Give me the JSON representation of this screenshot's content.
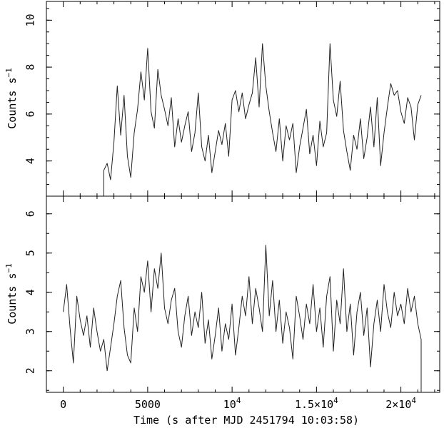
{
  "chart_data": [
    {
      "type": "line",
      "panel": "top",
      "xlim": [
        -1000,
        22300
      ],
      "ylim": [
        2.5,
        10.8
      ],
      "yticks_major": [
        4,
        6,
        8,
        10
      ],
      "ytick_labels": [
        "4",
        "6",
        "8",
        "10"
      ],
      "ylabel_base": "Counts s",
      "ylabel_sup": "−1",
      "x": [
        2400,
        2600,
        2800,
        3000,
        3200,
        3400,
        3600,
        3800,
        4000,
        4200,
        4400,
        4600,
        4800,
        5000,
        5200,
        5400,
        5600,
        5800,
        6000,
        6200,
        6400,
        6600,
        6800,
        7000,
        7200,
        7400,
        7600,
        7800,
        8000,
        8200,
        8400,
        8600,
        8800,
        9000,
        9200,
        9400,
        9600,
        9800,
        10000,
        10200,
        10400,
        10600,
        10800,
        11000,
        11200,
        11400,
        11600,
        11800,
        12000,
        12200,
        12400,
        12600,
        12800,
        13000,
        13200,
        13400,
        13600,
        13800,
        14000,
        14200,
        14400,
        14600,
        14800,
        15000,
        15200,
        15400,
        15600,
        15800,
        16000,
        16200,
        16400,
        16600,
        16800,
        17000,
        17200,
        17400,
        17600,
        17800,
        18000,
        18200,
        18400,
        18600,
        18800,
        19000,
        19200,
        19400,
        19600,
        19800,
        20000,
        20200,
        20400,
        20600,
        20800,
        21000,
        21200
      ],
      "y": [
        3.6,
        3.9,
        3.2,
        4.8,
        7.2,
        5.1,
        6.8,
        4.2,
        3.3,
        5.2,
        6.2,
        7.8,
        6.6,
        8.8,
        6.1,
        5.4,
        7.9,
        6.8,
        6.2,
        5.5,
        6.7,
        4.6,
        5.8,
        4.8,
        5.5,
        6.1,
        4.4,
        5.2,
        6.9,
        4.6,
        4.0,
        5.1,
        3.5,
        4.4,
        5.3,
        4.7,
        5.6,
        4.2,
        6.6,
        7.0,
        6.1,
        6.9,
        5.8,
        6.4,
        6.9,
        8.4,
        6.3,
        9.0,
        7.2,
        6.1,
        5.2,
        4.4,
        5.8,
        4.0,
        5.5,
        4.9,
        5.6,
        3.5,
        4.6,
        5.4,
        6.2,
        4.3,
        5.1,
        3.8,
        5.7,
        4.6,
        5.2,
        9.0,
        6.6,
        5.9,
        7.4,
        5.3,
        4.4,
        3.6,
        5.1,
        4.5,
        5.8,
        4.1,
        5.0,
        6.3,
        4.6,
        6.7,
        3.8,
        5.2,
        6.3,
        7.3,
        6.8,
        7.0,
        6.1,
        5.6,
        6.7,
        6.3,
        4.9,
        6.4,
        6.8
      ]
    },
    {
      "type": "line",
      "panel": "bottom",
      "xlim": [
        -1000,
        22300
      ],
      "ylim": [
        1.45,
        6.45
      ],
      "yticks_major": [
        2,
        3,
        4,
        5,
        6
      ],
      "ytick_labels": [
        "2",
        "3",
        "4",
        "5",
        "6"
      ],
      "ylabel_base": "Counts s",
      "ylabel_sup": "−1",
      "xticks_major": [
        0,
        5000,
        10000,
        15000,
        20000
      ],
      "xtick_labels": [
        {
          "base": "0",
          "sup": ""
        },
        {
          "base": "5000",
          "sup": ""
        },
        {
          "base": "10",
          "sup": "4"
        },
        {
          "base": "1.5×10",
          "sup": "4"
        },
        {
          "base": "2×10",
          "sup": "4"
        }
      ],
      "xlabel": "Time (s after MJD 2451794 10:03:58)",
      "x": [
        0,
        200,
        400,
        600,
        800,
        1000,
        1200,
        1400,
        1600,
        1800,
        2000,
        2200,
        2400,
        2600,
        2800,
        3000,
        3200,
        3400,
        3600,
        3800,
        4000,
        4200,
        4400,
        4600,
        4800,
        5000,
        5200,
        5400,
        5600,
        5800,
        6000,
        6200,
        6400,
        6600,
        6800,
        7000,
        7200,
        7400,
        7600,
        7800,
        8000,
        8200,
        8400,
        8600,
        8800,
        9000,
        9200,
        9400,
        9600,
        9800,
        10000,
        10200,
        10400,
        10600,
        10800,
        11000,
        11200,
        11400,
        11600,
        11800,
        12000,
        12200,
        12400,
        12600,
        12800,
        13000,
        13200,
        13400,
        13600,
        13800,
        14000,
        14200,
        14400,
        14600,
        14800,
        15000,
        15200,
        15400,
        15600,
        15800,
        16000,
        16200,
        16400,
        16600,
        16800,
        17000,
        17200,
        17400,
        17600,
        17800,
        18000,
        18200,
        18400,
        18600,
        18800,
        19000,
        19200,
        19400,
        19600,
        19800,
        20000,
        20200,
        20400,
        20600,
        20800,
        21000,
        21200
      ],
      "y": [
        3.5,
        4.2,
        3.1,
        2.2,
        3.9,
        3.3,
        2.9,
        3.4,
        2.6,
        3.6,
        3.0,
        2.5,
        2.8,
        2.0,
        2.6,
        3.2,
        3.9,
        4.3,
        3.1,
        2.4,
        2.2,
        3.6,
        3.0,
        4.4,
        4.0,
        4.8,
        3.5,
        4.6,
        4.1,
        5.0,
        3.6,
        3.2,
        3.8,
        4.1,
        3.0,
        2.6,
        3.4,
        3.9,
        2.9,
        3.5,
        3.1,
        4.0,
        2.7,
        3.3,
        2.3,
        2.9,
        3.6,
        2.5,
        3.2,
        2.8,
        3.7,
        2.4,
        3.1,
        3.9,
        3.4,
        4.4,
        3.2,
        4.1,
        3.6,
        3.0,
        5.2,
        3.4,
        4.3,
        3.0,
        3.8,
        2.7,
        3.5,
        3.1,
        2.3,
        3.9,
        3.4,
        2.8,
        3.7,
        3.2,
        4.2,
        3.0,
        3.6,
        2.6,
        3.9,
        4.4,
        2.5,
        3.8,
        3.2,
        4.6,
        3.0,
        3.7,
        2.4,
        3.5,
        4.0,
        2.9,
        3.6,
        2.1,
        3.2,
        3.8,
        3.0,
        4.2,
        3.5,
        3.1,
        4.0,
        3.4,
        3.7,
        3.2,
        4.1,
        3.5,
        3.9,
        3.2,
        2.8
      ]
    }
  ]
}
